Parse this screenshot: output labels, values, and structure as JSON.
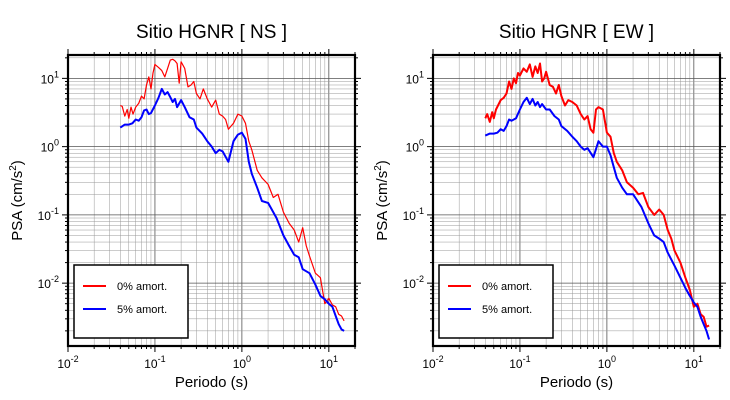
{
  "chart_data": [
    {
      "type": "line",
      "title": "Sitio HGNR [ NS ]",
      "xlabel": "Periodo (s)",
      "ylabel_main": "PSA (cm/s",
      "ylabel_sup": "2",
      "ylabel_end": ")",
      "xscale": "log",
      "yscale": "log",
      "xlim": [
        0.01,
        20
      ],
      "ylim": [
        0.0012,
        22
      ],
      "grid": true,
      "legend_position": "bottom-left",
      "xticks": [
        {
          "base": "10",
          "exp": "-2",
          "value": 0.01
        },
        {
          "base": "10",
          "exp": "-1",
          "value": 0.1
        },
        {
          "base": "10",
          "exp": "0",
          "value": 1
        },
        {
          "base": "10",
          "exp": "1",
          "value": 10
        }
      ],
      "yticks": [
        {
          "base": "10",
          "exp": "-2",
          "value": 0.01
        },
        {
          "base": "10",
          "exp": "-1",
          "value": 0.1
        },
        {
          "base": "10",
          "exp": "0",
          "value": 1
        },
        {
          "base": "10",
          "exp": "1",
          "value": 10
        }
      ],
      "series": [
        {
          "name": "0% amort.",
          "color": "#ff0000",
          "width": 1.2,
          "x": [
            0.04,
            0.042,
            0.045,
            0.048,
            0.05,
            0.053,
            0.056,
            0.06,
            0.065,
            0.07,
            0.075,
            0.08,
            0.085,
            0.09,
            0.095,
            0.1,
            0.11,
            0.12,
            0.13,
            0.14,
            0.15,
            0.16,
            0.17,
            0.18,
            0.19,
            0.2,
            0.22,
            0.24,
            0.26,
            0.28,
            0.3,
            0.33,
            0.36,
            0.4,
            0.45,
            0.5,
            0.55,
            0.6,
            0.65,
            0.7,
            0.75,
            0.8,
            0.9,
            1.0,
            1.1,
            1.2,
            1.3,
            1.5,
            1.7,
            2.0,
            2.3,
            2.6,
            3.0,
            3.5,
            4.0,
            4.5,
            5.0,
            5.5,
            6.0,
            7.0,
            8.0,
            9.0,
            10.0,
            11.0,
            12.0,
            13.0,
            14.0,
            15.0
          ],
          "y": [
            4.0,
            3.9,
            2.8,
            3.5,
            2.6,
            3.8,
            3.0,
            3.8,
            4.3,
            5.5,
            5.0,
            8.0,
            10.5,
            7.0,
            12.0,
            16.0,
            14.5,
            13.0,
            10.5,
            14.0,
            18.5,
            19.0,
            18.0,
            16.5,
            8.5,
            17.5,
            14.0,
            7.5,
            8.0,
            9.0,
            6.0,
            5.0,
            7.0,
            5.0,
            3.8,
            4.8,
            3.0,
            2.8,
            2.5,
            1.8,
            2.0,
            2.2,
            3.0,
            2.8,
            2.2,
            1.2,
            0.9,
            0.45,
            0.35,
            0.28,
            0.18,
            0.2,
            0.11,
            0.075,
            0.06,
            0.04,
            0.065,
            0.035,
            0.025,
            0.014,
            0.012,
            0.005,
            0.006,
            0.0048,
            0.0045,
            0.0035,
            0.0033,
            0.0028
          ]
        },
        {
          "name": "5% amort.",
          "color": "#0000ff",
          "width": 2,
          "x": [
            0.04,
            0.045,
            0.05,
            0.055,
            0.06,
            0.065,
            0.07,
            0.075,
            0.08,
            0.085,
            0.09,
            0.1,
            0.11,
            0.12,
            0.13,
            0.14,
            0.15,
            0.16,
            0.17,
            0.18,
            0.2,
            0.22,
            0.25,
            0.28,
            0.3,
            0.35,
            0.4,
            0.45,
            0.5,
            0.55,
            0.6,
            0.7,
            0.8,
            0.9,
            1.0,
            1.1,
            1.2,
            1.3,
            1.5,
            1.7,
            2.0,
            2.5,
            3.0,
            3.5,
            4.0,
            4.5,
            5.0,
            6.0,
            7.0,
            8.0,
            9.0,
            10.0,
            11.0,
            12.0,
            13.0,
            14.0,
            15.0
          ],
          "y": [
            1.9,
            2.1,
            2.1,
            2.2,
            2.5,
            2.4,
            2.7,
            3.4,
            3.5,
            3.0,
            3.1,
            4.0,
            5.2,
            7.0,
            5.8,
            6.3,
            5.3,
            4.5,
            5.0,
            3.8,
            4.8,
            3.8,
            2.7,
            2.5,
            1.9,
            1.55,
            1.2,
            1.0,
            0.8,
            0.9,
            0.85,
            0.6,
            1.2,
            1.5,
            1.6,
            1.3,
            0.6,
            0.4,
            0.25,
            0.16,
            0.15,
            0.09,
            0.05,
            0.035,
            0.026,
            0.024,
            0.016,
            0.014,
            0.0095,
            0.0065,
            0.0058,
            0.005,
            0.0045,
            0.0033,
            0.0025,
            0.0021,
            0.002
          ]
        }
      ]
    },
    {
      "type": "line",
      "title": "Sitio HGNR [ EW ]",
      "xlabel": "Periodo (s)",
      "ylabel_main": "PSA (cm/s",
      "ylabel_sup": "2",
      "ylabel_end": ")",
      "xscale": "log",
      "yscale": "log",
      "xlim": [
        0.01,
        20
      ],
      "ylim": [
        0.0012,
        22
      ],
      "grid": true,
      "legend_position": "bottom-left",
      "xticks": [
        {
          "base": "10",
          "exp": "-2",
          "value": 0.01
        },
        {
          "base": "10",
          "exp": "-1",
          "value": 0.1
        },
        {
          "base": "10",
          "exp": "0",
          "value": 1
        },
        {
          "base": "10",
          "exp": "1",
          "value": 10
        }
      ],
      "yticks": [
        {
          "base": "10",
          "exp": "-2",
          "value": 0.01
        },
        {
          "base": "10",
          "exp": "-1",
          "value": 0.1
        },
        {
          "base": "10",
          "exp": "0",
          "value": 1
        },
        {
          "base": "10",
          "exp": "1",
          "value": 10
        }
      ],
      "series": [
        {
          "name": "0% amort.",
          "color": "#ff0000",
          "width": 2,
          "x": [
            0.04,
            0.042,
            0.045,
            0.048,
            0.05,
            0.053,
            0.056,
            0.06,
            0.065,
            0.07,
            0.075,
            0.08,
            0.085,
            0.09,
            0.095,
            0.1,
            0.11,
            0.12,
            0.13,
            0.14,
            0.15,
            0.16,
            0.17,
            0.18,
            0.19,
            0.2,
            0.22,
            0.24,
            0.26,
            0.28,
            0.3,
            0.33,
            0.36,
            0.4,
            0.45,
            0.5,
            0.55,
            0.6,
            0.65,
            0.7,
            0.75,
            0.8,
            0.9,
            1.0,
            1.1,
            1.2,
            1.3,
            1.5,
            1.7,
            2.0,
            2.3,
            2.6,
            3.0,
            3.5,
            4.0,
            4.5,
            5.0,
            5.5,
            6.0,
            7.0,
            8.0,
            9.0,
            10.0,
            11.0,
            12.0,
            13.0,
            14.0,
            15.0
          ],
          "y": [
            2.6,
            3.0,
            2.3,
            3.2,
            2.6,
            3.5,
            4.0,
            4.8,
            5.2,
            6.0,
            9.0,
            7.0,
            10.0,
            8.5,
            12.0,
            11.0,
            14.0,
            12.5,
            16.0,
            10.5,
            15.0,
            12.0,
            16.5,
            9.0,
            10.0,
            12.5,
            8.0,
            7.5,
            6.0,
            8.0,
            5.5,
            4.0,
            4.8,
            4.5,
            4.0,
            3.0,
            2.5,
            2.8,
            1.8,
            1.6,
            3.5,
            3.8,
            3.5,
            1.6,
            1.4,
            0.8,
            0.6,
            0.45,
            0.3,
            0.25,
            0.2,
            0.21,
            0.13,
            0.1,
            0.12,
            0.1,
            0.06,
            0.045,
            0.03,
            0.02,
            0.012,
            0.008,
            0.0045,
            0.005,
            0.0035,
            0.0032,
            0.0023,
            0.0024
          ]
        },
        {
          "name": "5% amort.",
          "color": "#0000ff",
          "width": 2,
          "x": [
            0.04,
            0.045,
            0.05,
            0.055,
            0.06,
            0.065,
            0.07,
            0.075,
            0.08,
            0.085,
            0.09,
            0.1,
            0.11,
            0.12,
            0.13,
            0.14,
            0.15,
            0.16,
            0.17,
            0.18,
            0.2,
            0.22,
            0.25,
            0.28,
            0.3,
            0.35,
            0.4,
            0.45,
            0.5,
            0.55,
            0.6,
            0.7,
            0.8,
            0.9,
            1.0,
            1.1,
            1.2,
            1.3,
            1.5,
            1.7,
            2.0,
            2.5,
            3.0,
            3.5,
            4.0,
            4.5,
            5.0,
            6.0,
            7.0,
            8.0,
            9.0,
            10.0,
            11.0,
            12.0,
            13.0,
            14.0,
            15.0
          ],
          "y": [
            1.45,
            1.55,
            1.55,
            1.6,
            1.8,
            1.7,
            2.0,
            2.5,
            2.4,
            2.5,
            2.6,
            3.5,
            4.5,
            5.2,
            4.2,
            5.0,
            4.0,
            4.5,
            3.8,
            4.2,
            3.5,
            3.5,
            2.8,
            2.5,
            2.0,
            1.7,
            1.4,
            1.2,
            1.0,
            0.9,
            0.95,
            0.7,
            1.2,
            1.0,
            1.0,
            0.75,
            0.5,
            0.35,
            0.25,
            0.2,
            0.2,
            0.13,
            0.075,
            0.05,
            0.045,
            0.04,
            0.028,
            0.018,
            0.012,
            0.0085,
            0.0065,
            0.0052,
            0.0045,
            0.0032,
            0.0025,
            0.002,
            0.0015
          ]
        }
      ]
    }
  ]
}
